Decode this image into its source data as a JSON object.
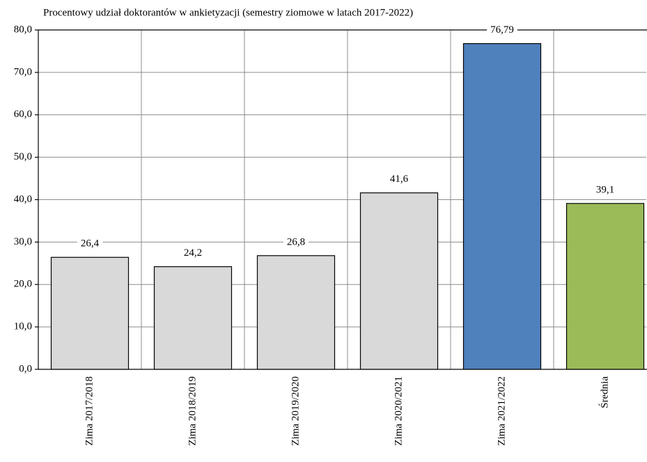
{
  "chart_data": {
    "type": "bar",
    "title": "Procentowy udział doktorantów w ankietyzacji (semestry ziomowe w latach 2017-2022)",
    "categories": [
      "Zima 2017/2018",
      "Zima 2018/2019",
      "Zima 2019/2020",
      "Zima 2020/2021",
      "Zima 2021/2022",
      "Średnia"
    ],
    "values": [
      26.4,
      24.2,
      26.8,
      41.6,
      76.79,
      39.1
    ],
    "value_labels": [
      "26,4",
      "24,2",
      "26,8",
      "41,6",
      "76,79",
      "39,1"
    ],
    "colors": [
      "#d9d9d9",
      "#d9d9d9",
      "#d9d9d9",
      "#d9d9d9",
      "#4f81bd",
      "#9bbb59"
    ],
    "ylim": [
      0,
      80
    ],
    "yticks": [
      {
        "value": 0,
        "label": "0,0"
      },
      {
        "value": 10,
        "label": "10,0"
      },
      {
        "value": 20,
        "label": "20,0"
      },
      {
        "value": 30,
        "label": "30,0"
      },
      {
        "value": 40,
        "label": "40,0"
      },
      {
        "value": 50,
        "label": "50,0"
      },
      {
        "value": 60,
        "label": "60,0"
      },
      {
        "value": 70,
        "label": "70,0"
      },
      {
        "value": 80,
        "label": "80,0"
      }
    ],
    "grid": true
  }
}
